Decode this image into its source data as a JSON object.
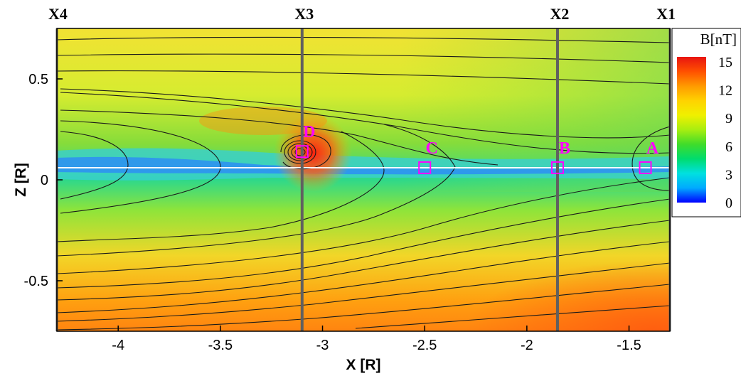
{
  "chart_data": {
    "type": "heatmap",
    "xlabel": "X [R]",
    "ylabel": "Z [R]",
    "xlim": [
      -4.3,
      -1.3
    ],
    "ylim": [
      -0.75,
      0.75
    ],
    "x_ticks": [
      {
        "value": -4,
        "label": "-4"
      },
      {
        "value": -3.5,
        "label": "-3.5"
      },
      {
        "value": -3,
        "label": "-3"
      },
      {
        "value": -2.5,
        "label": "-2.5"
      },
      {
        "value": -2,
        "label": "-2"
      },
      {
        "value": -1.5,
        "label": "-1.5"
      }
    ],
    "y_ticks": [
      {
        "value": 0.5,
        "label": "0.5"
      },
      {
        "value": 0,
        "label": "0"
      },
      {
        "value": -0.5,
        "label": "-0.5"
      }
    ],
    "colorbar": {
      "title": "B[nT]",
      "min": 0,
      "max": 15,
      "ticks": [
        "15",
        "12",
        "9",
        "6",
        "3",
        "0"
      ],
      "colors": [
        "#0000ff",
        "#00aaff",
        "#00e0e0",
        "#00dc6e",
        "#40dc2a",
        "#a8ee10",
        "#f0f000",
        "#ffd200",
        "#ff9a00",
        "#ff5000",
        "#e81410"
      ]
    },
    "cuts": [
      {
        "label": "X4",
        "x": -4.3
      },
      {
        "label": "X3",
        "x": -3.1
      },
      {
        "label": "X2",
        "x": -1.85
      },
      {
        "label": "X1",
        "x": -1.3
      }
    ],
    "markers": [
      {
        "label": "A",
        "x": -1.42,
        "z": 0.06
      },
      {
        "label": "B",
        "x": -1.85,
        "z": 0.06
      },
      {
        "label": "C",
        "x": -2.5,
        "z": 0.06
      },
      {
        "label": "D",
        "x": -3.1,
        "z": 0.14
      }
    ],
    "reference_line_z": 0.06,
    "marker_color": "#ff00ff",
    "cut_line_color": "#606060"
  }
}
